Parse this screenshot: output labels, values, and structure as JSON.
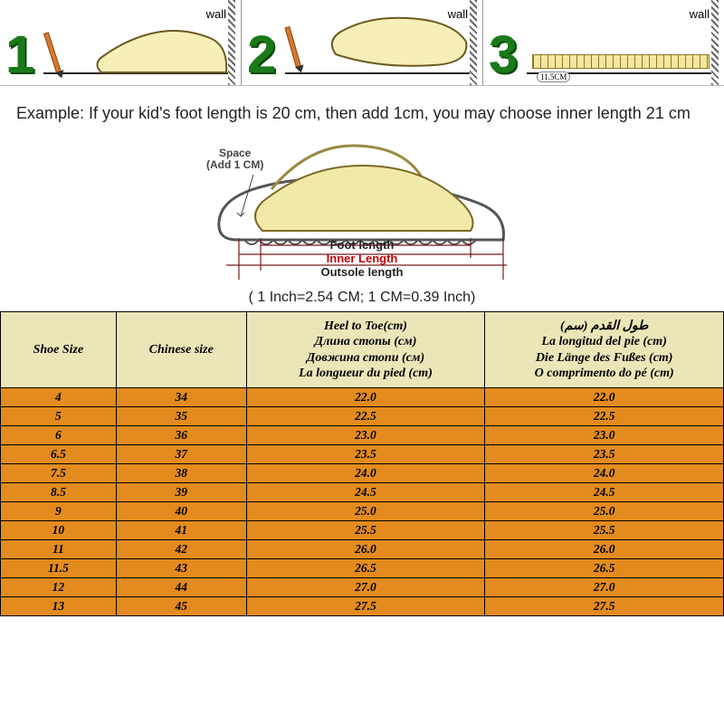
{
  "steps": {
    "wall_label": "wall",
    "numbers": [
      "1",
      "2",
      "3"
    ],
    "ruler_value": "11.5CM"
  },
  "example_text": "Example: If your kid's foot length is 20 cm, then add 1cm, you may choose inner length 21 cm",
  "diagram": {
    "space_line1": "Space",
    "space_line2": "(Add 1 CM)",
    "foot_length": "Foot length",
    "inner_length": "Inner Length",
    "outsole_length": "Outsole length"
  },
  "conversion": "( 1 Inch=2.54 CM; 1 CM=0.39 Inch)",
  "table": {
    "header": {
      "shoe_size": "Shoe Size",
      "chinese_size": "Chinese size",
      "heel_to_toe": {
        "l1": "Heel to Toe(cm)",
        "l2": "Длина стопы (см)",
        "l3": "Довжина стопи (см)",
        "l4": "La longueur du pied (cm)"
      },
      "foot_length": {
        "l1": "طول القدم (سم)",
        "l2": "La longitud del pie (cm)",
        "l3": "Die Länge des Fußes (cm)",
        "l4": "O comprimento do pé (cm)"
      }
    },
    "rows": [
      {
        "a": "4",
        "b": "34",
        "c": "22.0",
        "d": "22.0"
      },
      {
        "a": "5",
        "b": "35",
        "c": "22.5",
        "d": "22.5"
      },
      {
        "a": "6",
        "b": "36",
        "c": "23.0",
        "d": "23.0"
      },
      {
        "a": "6.5",
        "b": "37",
        "c": "23.5",
        "d": "23.5"
      },
      {
        "a": "7.5",
        "b": "38",
        "c": "24.0",
        "d": "24.0"
      },
      {
        "a": "8.5",
        "b": "39",
        "c": "24.5",
        "d": "24.5"
      },
      {
        "a": "9",
        "b": "40",
        "c": "25.0",
        "d": "25.0"
      },
      {
        "a": "10",
        "b": "41",
        "c": "25.5",
        "d": "25.5"
      },
      {
        "a": "11",
        "b": "42",
        "c": "26.0",
        "d": "26.0"
      },
      {
        "a": "11.5",
        "b": "43",
        "c": "26.5",
        "d": "26.5"
      },
      {
        "a": "12",
        "b": "44",
        "c": "27.0",
        "d": "27.0"
      },
      {
        "a": "13",
        "b": "45",
        "c": "27.5",
        "d": "27.5"
      }
    ]
  },
  "colors": {
    "header_bg": "#eae6b8",
    "row_bg": "#e38b1f",
    "inner_length_color": "#c00000",
    "step_number_color": "#1a7a1a"
  }
}
